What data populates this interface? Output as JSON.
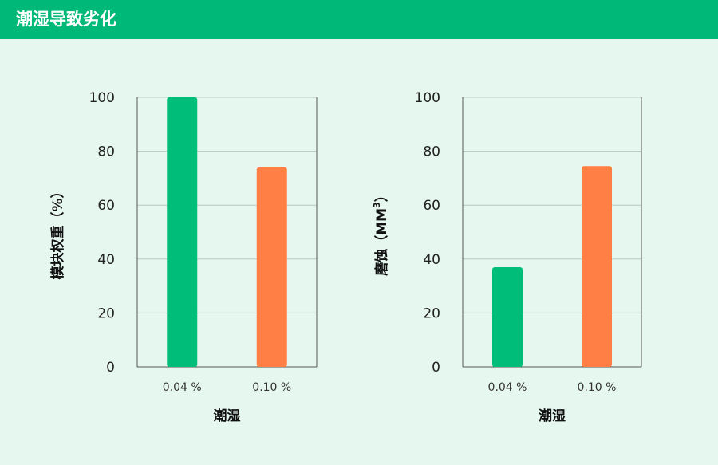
{
  "header": {
    "title": "潮湿导致劣化"
  },
  "colors": {
    "header": "#00b877",
    "background": "#e6f7f0",
    "series_a": "#00bd79",
    "series_b": "#ff7f45",
    "grid": "#b8c8c0",
    "axis": "#555555"
  },
  "chart_data": [
    {
      "type": "bar",
      "categories": [
        "0.04 %",
        "0.10 %"
      ],
      "values": [
        100,
        74
      ],
      "xlabel": "潮湿",
      "ylabel": "模块权重（%）",
      "ylim": [
        0,
        100
      ],
      "yticks": [
        0,
        20,
        40,
        60,
        80,
        100
      ],
      "grid": true
    },
    {
      "type": "bar",
      "categories": [
        "0.04 %",
        "0.10 %"
      ],
      "values": [
        37,
        74.5
      ],
      "xlabel": "潮湿",
      "ylabel": "磨蚀（MM",
      "ylabel_superscript": "3",
      "ylabel_suffix": "）",
      "ylim": [
        0,
        100
      ],
      "yticks": [
        0,
        20,
        40,
        60,
        80,
        100
      ],
      "grid": true
    }
  ]
}
